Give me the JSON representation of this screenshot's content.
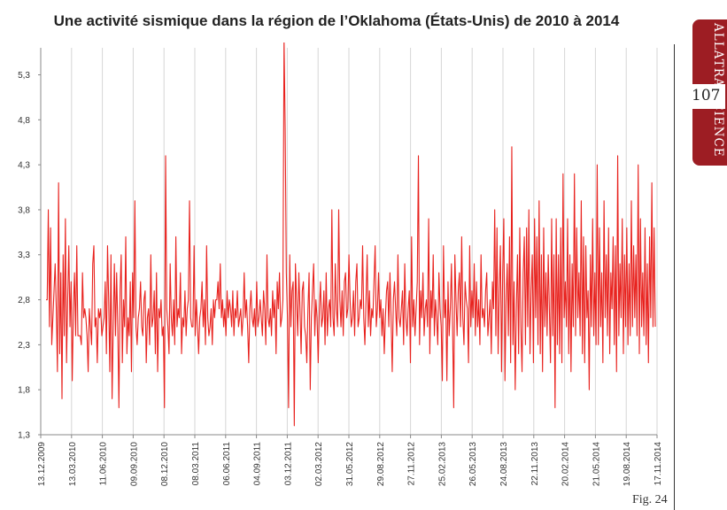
{
  "page": {
    "title": "Une activité sismique dans la région de l’Oklahoma (États-Unis) de 2010 à 2014",
    "side_tab": "ALLATRA SCIENCE",
    "page_number": "107",
    "figure_label": "Fig. 24",
    "brand_color": "#9d1d23"
  },
  "chart_data": {
    "type": "line",
    "title": "Une activité sismique dans la région de l’Oklahoma (États-Unis) de 2010 à 2014",
    "xlabel": "",
    "ylabel": "",
    "ylim": [
      1.3,
      5.6
    ],
    "y_ticks": [
      "1,3",
      "1,8",
      "2,3",
      "2,8",
      "3,3",
      "3,8",
      "4,3",
      "4,8",
      "5,3"
    ],
    "x_ticks": [
      "13.12.2009",
      "13.03.2010",
      "11.06.2010",
      "09.09.2010",
      "08.12.2010",
      "08.03.2011",
      "06.06.2011",
      "04.09.2011",
      "03.12.2011",
      "02.03.2012",
      "31.05.2012",
      "29.08.2012",
      "27.11.2012",
      "25.02.2013",
      "26.05.2013",
      "24.08.2013",
      "22.11.2013",
      "20.02.2014",
      "21.05.2014",
      "19.08.2014",
      "17.11.2014"
    ],
    "grid": "vertical",
    "line_color": "#e8221e",
    "series": [
      {
        "values": [
          2.8,
          2.8,
          3.8,
          2.5,
          3.6,
          2.3,
          2.6,
          2.9,
          3.2,
          2.7,
          2.0,
          4.1,
          2.2,
          3.1,
          1.7,
          3.3,
          2.4,
          3.7,
          2.1,
          2.8,
          3.4,
          2.5,
          3.0,
          1.9,
          2.7,
          3.1,
          2.4,
          3.4,
          2.4,
          2.4,
          2.4,
          2.3,
          3.1,
          2.6,
          2.7,
          2.6,
          2.4,
          2.0,
          2.7,
          2.5,
          2.3,
          3.2,
          3.4,
          2.5,
          2.6,
          2.1,
          2.7,
          2.6,
          2.7,
          2.4,
          2.5,
          2.6,
          3.0,
          2.2,
          3.4,
          2.8,
          2.0,
          3.3,
          1.7,
          2.5,
          3.2,
          2.4,
          3.1,
          2.5,
          1.6,
          2.9,
          3.3,
          2.1,
          2.8,
          2.5,
          3.5,
          2.2,
          2.6,
          2.4,
          3.0,
          2.0,
          3.1,
          2.6,
          3.9,
          2.5,
          2.3,
          2.6,
          2.7,
          3.0,
          2.5,
          2.4,
          2.8,
          2.9,
          2.1,
          2.6,
          2.7,
          2.3,
          3.3,
          2.5,
          2.6,
          2.9,
          2.2,
          3.1,
          2.0,
          2.7,
          2.6,
          2.8,
          2.4,
          2.5,
          1.6,
          4.4,
          2.7,
          2.5,
          2.2,
          3.2,
          2.6,
          2.4,
          2.8,
          2.3,
          3.5,
          2.5,
          2.7,
          2.6,
          3.1,
          2.2,
          2.6,
          2.5,
          2.9,
          2.4,
          2.7,
          2.8,
          3.9,
          2.6,
          2.5,
          2.5,
          3.4,
          2.4,
          2.8,
          2.5,
          2.2,
          2.6,
          2.7,
          3.0,
          2.5,
          2.8,
          2.3,
          3.4,
          2.6,
          2.4,
          2.5,
          2.7,
          2.3,
          2.8,
          2.6,
          2.8,
          2.8,
          3.0,
          2.7,
          3.2,
          2.6,
          2.8,
          2.5,
          2.7,
          2.4,
          2.9,
          2.6,
          2.8,
          2.7,
          2.5,
          2.9,
          2.4,
          2.7,
          2.6,
          2.9,
          2.5,
          2.6,
          2.7,
          2.4,
          2.6,
          3.1,
          2.6,
          2.8,
          2.5,
          2.1,
          2.7,
          2.9,
          2.6,
          2.5,
          2.7,
          2.4,
          3.0,
          2.5,
          2.6,
          2.8,
          2.6,
          2.4,
          2.9,
          2.7,
          2.3,
          3.3,
          2.6,
          2.5,
          2.7,
          2.4,
          2.9,
          2.6,
          2.8,
          2.2,
          3.0,
          2.7,
          3.1,
          2.5,
          2.6,
          2.8,
          5.7,
          4.7,
          3.1,
          2.6,
          1.6,
          3.3,
          2.5,
          2.9,
          3.0,
          1.4,
          3.2,
          2.8,
          2.4,
          3.1,
          2.7,
          2.2,
          2.9,
          3.0,
          2.5,
          2.4,
          2.1,
          2.7,
          3.1,
          1.8,
          2.6,
          2.9,
          3.2,
          2.4,
          2.8,
          2.6,
          2.1,
          2.7,
          3.0,
          2.5,
          2.6,
          2.9,
          2.3,
          3.1,
          2.4,
          2.7,
          2.8,
          2.5,
          3.8,
          2.6,
          2.4,
          3.2,
          2.7,
          2.5,
          3.8,
          2.8,
          2.5,
          2.9,
          2.4,
          3.0,
          3.1,
          2.6,
          2.7,
          3.3,
          2.8,
          2.5,
          2.6,
          2.9,
          2.4,
          3.0,
          3.2,
          2.5,
          2.6,
          2.8,
          2.7,
          3.4,
          2.6,
          2.3,
          2.8,
          3.3,
          2.5,
          2.9,
          2.4,
          2.7,
          2.6,
          3.0,
          3.4,
          2.5,
          2.7,
          3.1,
          2.6,
          2.8,
          2.4,
          2.7,
          2.2,
          2.6,
          2.9,
          3.0,
          2.5,
          3.1,
          2.6,
          2.0,
          2.8,
          3.0,
          2.7,
          2.4,
          3.3,
          2.6,
          2.5,
          2.7,
          2.9,
          2.3,
          3.2,
          2.6,
          2.4,
          2.7,
          2.9,
          2.1,
          3.5,
          2.5,
          2.8,
          2.4,
          2.7,
          3.0,
          4.4,
          2.3,
          2.9,
          2.6,
          3.1,
          2.4,
          2.7,
          2.8,
          2.5,
          3.7,
          2.2,
          2.9,
          2.6,
          3.3,
          2.4,
          2.8,
          2.6,
          2.3,
          3.1,
          2.7,
          2.5,
          1.9,
          3.4,
          2.6,
          2.8,
          1.9,
          3.0,
          2.4,
          2.7,
          3.2,
          2.5,
          1.6,
          3.3,
          2.8,
          2.4,
          2.9,
          3.1,
          2.5,
          3.5,
          2.6,
          2.3,
          3.0,
          2.8,
          2.7,
          2.1,
          3.4,
          2.5,
          2.9,
          2.6,
          3.2,
          2.4,
          3.0,
          2.5,
          2.8,
          2.3,
          3.3,
          2.6,
          2.7,
          2.5,
          2.9,
          3.1,
          2.4,
          2.6,
          2.8,
          2.2,
          3.0,
          2.7,
          3.8,
          2.4,
          3.6,
          2.2,
          2.9,
          3.4,
          2.0,
          3.1,
          3.7,
          1.9,
          2.8,
          3.2,
          2.4,
          3.5,
          2.1,
          4.5,
          2.3,
          3.0,
          1.8,
          2.7,
          3.3,
          2.2,
          3.6,
          2.5,
          2.0,
          3.1,
          3.5,
          2.3,
          3.6,
          2.5,
          3.8,
          2.2,
          2.9,
          3.3,
          2.1,
          3.7,
          2.6,
          3.5,
          2.3,
          3.9,
          2.2,
          3.3,
          2.0,
          3.6,
          2.5,
          3.1,
          2.4,
          3.3,
          2.7,
          2.1,
          3.7,
          2.4,
          3.3,
          1.6,
          3.7,
          2.3,
          3.3,
          2.2,
          3.6,
          2.1,
          4.2,
          2.6,
          3.0,
          2.5,
          3.7,
          2.2,
          3.3,
          2.0,
          3.2,
          2.5,
          4.2,
          2.4,
          3.6,
          2.6,
          3.1,
          2.4,
          3.9,
          2.2,
          3.5,
          2.1,
          3.4,
          2.6,
          2.9,
          1.8,
          3.3,
          2.5,
          3.7,
          2.4,
          3.1,
          2.3,
          4.3,
          2.3,
          3.6,
          2.5,
          3.1,
          2.1,
          3.9,
          2.6,
          3.3,
          2.4,
          3.6,
          2.2,
          3.1,
          2.7,
          3.5,
          2.3,
          3.4,
          2.0,
          4.4,
          2.4,
          3.2,
          2.6,
          3.7,
          2.2,
          3.3,
          2.5,
          3.6,
          2.3,
          3.2,
          2.4,
          3.9,
          2.5,
          3.4,
          2.6,
          3.3,
          2.4,
          4.3,
          2.2,
          3.7,
          2.5,
          3.1,
          2.4,
          3.6,
          2.3,
          3.2,
          2.1,
          3.5,
          2.6,
          4.1,
          2.5,
          3.6,
          2.5
        ]
      }
    ]
  }
}
